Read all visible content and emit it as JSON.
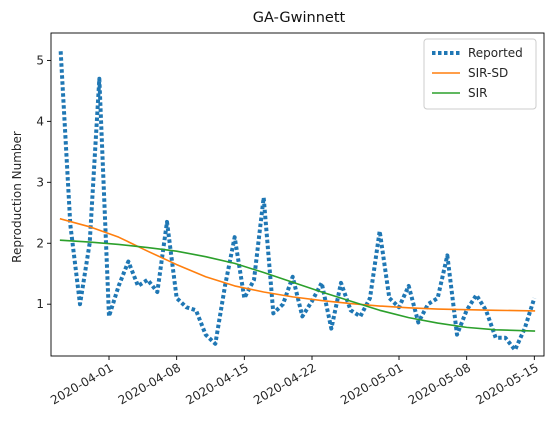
{
  "chart_data": {
    "type": "line",
    "title": "GA-Gwinnett",
    "xlabel": "",
    "ylabel": "Reproduction Number",
    "x_axis_type": "date",
    "xlim": [
      "2020-03-26",
      "2020-05-16"
    ],
    "ylim": [
      0.15,
      5.45
    ],
    "x_ticks": [
      "2020-04-01",
      "2020-04-08",
      "2020-04-15",
      "2020-04-22",
      "2020-05-01",
      "2020-05-08",
      "2020-05-15"
    ],
    "y_ticks": [
      1,
      2,
      3,
      4,
      5
    ],
    "grid": false,
    "legend_position": "top-right",
    "series": [
      {
        "name": "Reported",
        "style": "dotted",
        "color": "#1f77b4",
        "x": [
          "2020-03-27",
          "2020-03-28",
          "2020-03-29",
          "2020-03-30",
          "2020-03-31",
          "2020-04-01",
          "2020-04-02",
          "2020-04-03",
          "2020-04-04",
          "2020-04-05",
          "2020-04-06",
          "2020-04-07",
          "2020-04-08",
          "2020-04-09",
          "2020-04-10",
          "2020-04-11",
          "2020-04-12",
          "2020-04-13",
          "2020-04-14",
          "2020-04-15",
          "2020-04-16",
          "2020-04-17",
          "2020-04-18",
          "2020-04-19",
          "2020-04-20",
          "2020-04-21",
          "2020-04-22",
          "2020-04-23",
          "2020-04-24",
          "2020-04-25",
          "2020-04-26",
          "2020-04-27",
          "2020-04-28",
          "2020-04-29",
          "2020-04-30",
          "2020-05-01",
          "2020-05-02",
          "2020-05-03",
          "2020-05-04",
          "2020-05-05",
          "2020-05-06",
          "2020-05-07",
          "2020-05-08",
          "2020-05-09",
          "2020-05-10",
          "2020-05-11",
          "2020-05-12",
          "2020-05-13",
          "2020-05-14",
          "2020-05-15"
        ],
        "values": [
          5.15,
          2.3,
          1.0,
          2.0,
          4.7,
          0.8,
          1.3,
          1.7,
          1.3,
          1.4,
          1.2,
          2.35,
          1.1,
          0.95,
          0.9,
          0.5,
          0.35,
          1.3,
          2.1,
          1.1,
          1.4,
          2.75,
          0.85,
          1.0,
          1.45,
          0.8,
          1.05,
          1.35,
          0.6,
          1.35,
          0.9,
          0.8,
          1.1,
          2.2,
          1.1,
          0.95,
          1.3,
          0.7,
          1.0,
          1.1,
          1.8,
          0.5,
          0.9,
          1.15,
          0.9,
          0.45,
          0.45,
          0.25,
          0.6,
          1.1
        ]
      },
      {
        "name": "SIR-SD",
        "style": "solid",
        "color": "#ff7f0e",
        "x": [
          "2020-03-27",
          "2020-03-30",
          "2020-04-02",
          "2020-04-05",
          "2020-04-08",
          "2020-04-11",
          "2020-04-14",
          "2020-04-17",
          "2020-04-20",
          "2020-04-23",
          "2020-04-26",
          "2020-04-29",
          "2020-05-02",
          "2020-05-05",
          "2020-05-08",
          "2020-05-11",
          "2020-05-15"
        ],
        "values": [
          2.4,
          2.27,
          2.1,
          1.87,
          1.65,
          1.45,
          1.3,
          1.2,
          1.12,
          1.06,
          1.01,
          0.97,
          0.94,
          0.92,
          0.91,
          0.9,
          0.89
        ]
      },
      {
        "name": "SIR",
        "style": "solid",
        "color": "#2ca02c",
        "x": [
          "2020-03-27",
          "2020-03-30",
          "2020-04-02",
          "2020-04-05",
          "2020-04-08",
          "2020-04-11",
          "2020-04-14",
          "2020-04-17",
          "2020-04-20",
          "2020-04-23",
          "2020-04-26",
          "2020-04-29",
          "2020-05-02",
          "2020-05-05",
          "2020-05-08",
          "2020-05-11",
          "2020-05-15"
        ],
        "values": [
          2.05,
          2.02,
          1.98,
          1.93,
          1.87,
          1.78,
          1.67,
          1.52,
          1.36,
          1.2,
          1.05,
          0.9,
          0.78,
          0.69,
          0.62,
          0.58,
          0.56
        ]
      }
    ]
  }
}
